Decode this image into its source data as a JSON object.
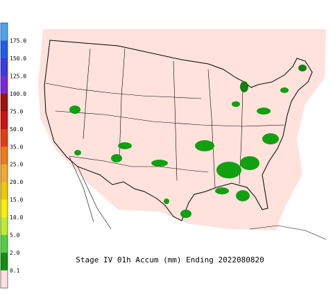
{
  "legend": {
    "labels": [
      "175.0",
      "150.0",
      "125.0",
      "100.0",
      "75.0",
      "50.0",
      "35.0",
      "25.0",
      "20.0",
      "15.0",
      "10.0",
      "5.0",
      "2.0",
      "0.1"
    ],
    "colors": [
      "#4aa3f0",
      "#1e5ee8",
      "#3a3ae0",
      "#7a28d8",
      "#a01010",
      "#cc1010",
      "#e83a10",
      "#f07a18",
      "#f5a830",
      "#f0c800",
      "#f8f000",
      "#b8f030",
      "#50d040",
      "#109010",
      "#ffe0e0"
    ]
  },
  "title": "Stage IV 01h Accum (mm) Ending 2022080820"
}
